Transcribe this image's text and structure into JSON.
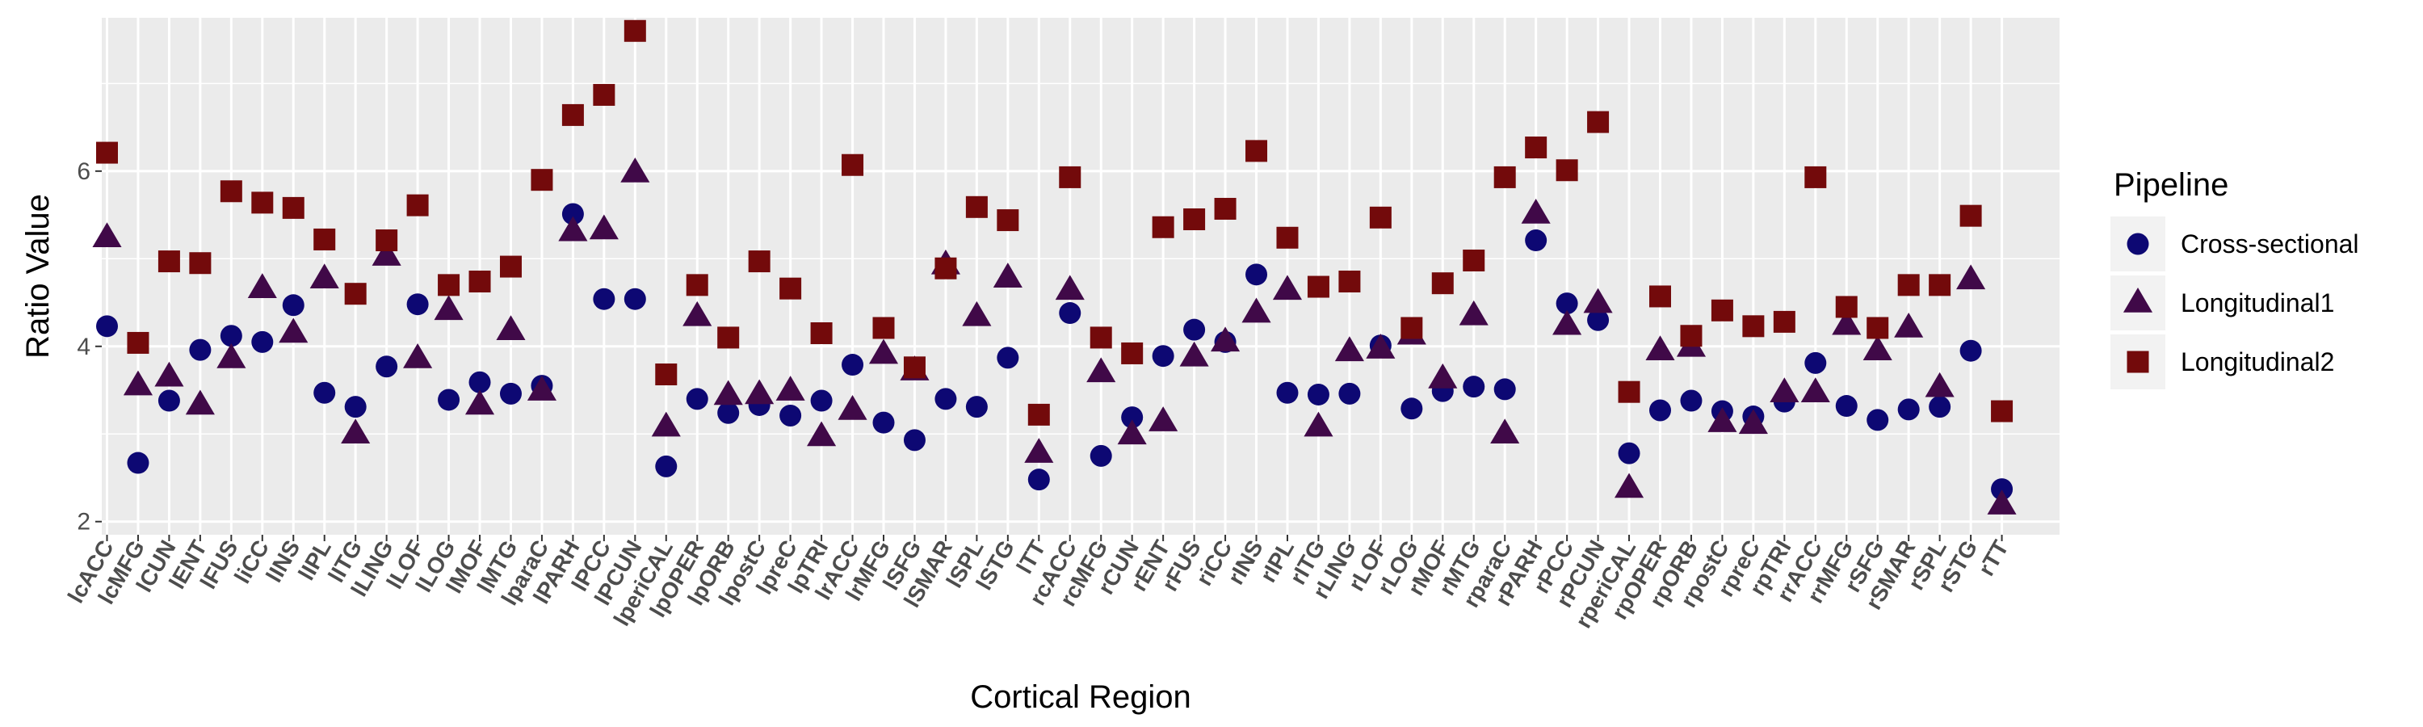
{
  "chart_data": {
    "type": "scatter",
    "title": "",
    "xlabel": "Cortical Region",
    "ylabel": "Ratio Value",
    "ylim": [
      1.85,
      7.75
    ],
    "yticks": [
      2,
      4,
      6
    ],
    "grid": true,
    "legend": {
      "title": "Pipeline",
      "position": "right"
    },
    "categories": [
      "lcACC",
      "lcMFG",
      "lCUN",
      "lENT",
      "lFUS",
      "liCC",
      "lINS",
      "lIPL",
      "lITG",
      "lLING",
      "lLOF",
      "lLOG",
      "lMOF",
      "lMTG",
      "lparaC",
      "lPARH",
      "lPCC",
      "lPCUN",
      "lperiCAL",
      "lpOPER",
      "lpORB",
      "lpostC",
      "lpreC",
      "lpTRI",
      "lrACC",
      "lrMFG",
      "lSFG",
      "lSMAR",
      "lSPL",
      "lSTG",
      "lTT",
      "rcACC",
      "rcMFG",
      "rCUN",
      "rENT",
      "rFUS",
      "riCC",
      "rINS",
      "rIPL",
      "rITG",
      "rLING",
      "rLOF",
      "rLOG",
      "rMOF",
      "rMTG",
      "rparaC",
      "rPARH",
      "rPCC",
      "rPCUN",
      "rperiCAL",
      "rpOPER",
      "rpORB",
      "rpostC",
      "rpreC",
      "rpTRI",
      "rrACC",
      "rrMFG",
      "rSFG",
      "rSMAR",
      "rSPL",
      "rSTG",
      "rTT"
    ],
    "series": [
      {
        "name": "Cross-sectional",
        "marker": "circle",
        "color": "#0d0873",
        "values": [
          4.23,
          2.67,
          3.38,
          3.96,
          4.12,
          4.05,
          4.47,
          3.47,
          3.31,
          3.77,
          4.48,
          3.39,
          3.59,
          3.46,
          3.55,
          5.51,
          4.54,
          4.54,
          2.63,
          3.4,
          3.24,
          3.33,
          3.21,
          3.38,
          3.79,
          3.13,
          2.93,
          3.4,
          3.31,
          3.87,
          2.48,
          4.38,
          2.75,
          3.19,
          3.89,
          4.19,
          4.05,
          4.82,
          3.47,
          3.45,
          3.46,
          4.01,
          3.29,
          3.49,
          3.54,
          3.51,
          5.21,
          4.49,
          4.3,
          2.78,
          3.27,
          3.38,
          3.26,
          3.2,
          3.37,
          3.81,
          3.32,
          3.16,
          3.28,
          3.31,
          3.95,
          2.37
        ]
      },
      {
        "name": "Longitudinal1",
        "marker": "triangle",
        "color": "#400948",
        "values": [
          5.24,
          3.55,
          3.65,
          3.33,
          3.86,
          4.66,
          4.15,
          4.77,
          3.0,
          5.03,
          3.86,
          4.41,
          3.33,
          4.18,
          3.49,
          5.31,
          5.33,
          5.98,
          3.08,
          4.34,
          3.44,
          3.45,
          3.49,
          2.97,
          3.27,
          3.91,
          3.72,
          4.93,
          4.34,
          4.78,
          2.78,
          4.64,
          3.7,
          2.99,
          3.14,
          3.88,
          4.05,
          4.38,
          4.64,
          3.08,
          3.94,
          3.97,
          4.13,
          3.63,
          4.35,
          3.0,
          5.51,
          4.24,
          4.49,
          2.38,
          3.95,
          3.99,
          3.13,
          3.11,
          3.47,
          3.47,
          4.24,
          3.95,
          4.21,
          3.53,
          4.76,
          2.19
        ]
      },
      {
        "name": "Longitudinal2",
        "marker": "square",
        "color": "#730a0b",
        "values": [
          6.21,
          4.04,
          4.97,
          4.95,
          5.77,
          5.64,
          5.58,
          5.22,
          4.6,
          5.21,
          5.61,
          4.7,
          4.74,
          4.91,
          5.9,
          6.64,
          6.87,
          7.6,
          3.68,
          4.7,
          4.1,
          4.97,
          4.66,
          4.15,
          6.07,
          4.21,
          3.76,
          4.89,
          5.59,
          5.44,
          3.22,
          5.93,
          4.1,
          3.92,
          5.36,
          5.45,
          5.57,
          6.23,
          5.24,
          4.68,
          4.74,
          5.47,
          4.21,
          4.72,
          4.98,
          5.93,
          6.27,
          6.01,
          6.56,
          3.48,
          4.57,
          4.12,
          4.41,
          4.23,
          4.28,
          5.93,
          4.45,
          4.21,
          4.7,
          4.7,
          5.49,
          3.26
        ]
      }
    ]
  }
}
